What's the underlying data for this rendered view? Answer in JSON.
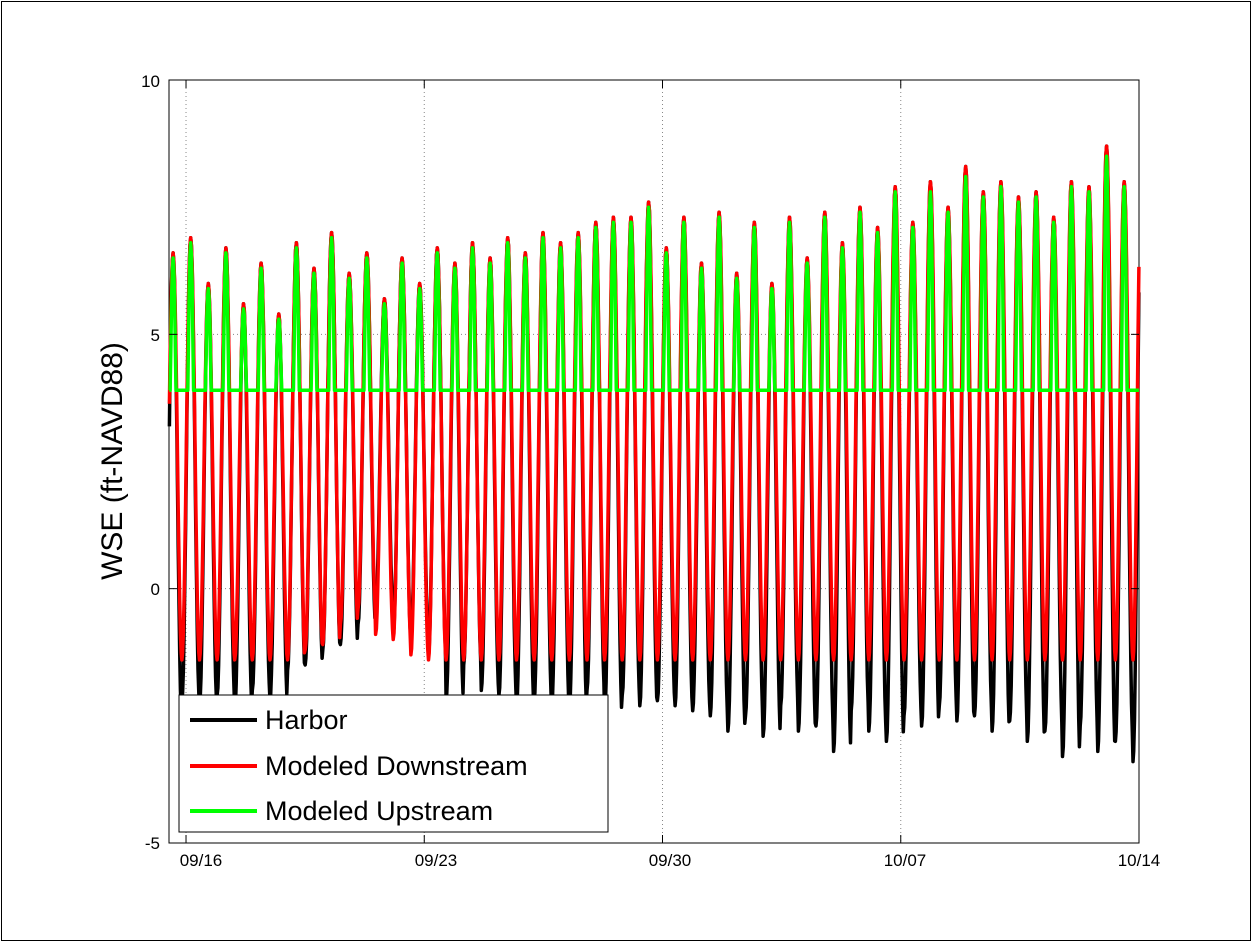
{
  "chart_data": {
    "type": "line",
    "title": "",
    "xlabel": "",
    "ylabel": "WSE (ft-NAVD88)",
    "xlim": [
      "09/15 12:00",
      "10/14 00:00"
    ],
    "ylim": [
      -5,
      10
    ],
    "yticks": [
      -5,
      0,
      5,
      10
    ],
    "ytick_labels": [
      "-5",
      "0",
      "5",
      "10"
    ],
    "xticks": [
      "09/16",
      "09/23",
      "09/30",
      "10/07",
      "10/14"
    ],
    "grid": true,
    "legend_position": "bottom-left",
    "tidal_period_hours": 12.42,
    "series": [
      {
        "name": "Harbor",
        "color": "#000000",
        "high_tide": "same as Modeled Downstream",
        "low_tides": [
          -2.6,
          -2.2,
          -2.3,
          -2.1,
          -2.4,
          -2.0,
          -2.2,
          -1.6,
          -1.5,
          -1.2,
          -1.1,
          -0.7,
          -0.4,
          -0.9,
          -1.0,
          -1.3,
          -2.2,
          -1.5,
          -2.0,
          -2.1,
          -2.3,
          -2.2,
          -2.3,
          -2.4,
          -2.0,
          -2.5,
          -2.1,
          -2.3,
          -2.2,
          -2.3,
          -2.4,
          -2.5,
          -2.8,
          -2.5,
          -2.9,
          -2.3,
          -2.8,
          -2.7,
          -3.2,
          -2.4,
          -2.8,
          -3.0,
          -2.5,
          -2.7,
          -2.3,
          -2.6,
          -2.5,
          -2.8,
          -2.6,
          -3.0,
          -2.8,
          -3.3,
          -2.7,
          -3.2,
          -3.0,
          -3.4,
          -3.2,
          -3.8,
          -3.0,
          -3.5,
          -3.3,
          -3.6,
          -3.0,
          -3.9,
          -3.3,
          -4.1,
          -3.3,
          -4.2,
          -3.4,
          -4.1,
          -3.2,
          -3.8,
          -2.8,
          -3.4,
          -2.6,
          -3.0,
          -2.4,
          -2.8,
          -2.2,
          -2.7,
          -2.0,
          -2.5,
          -1.8,
          -2.7,
          -2.0,
          -2.8,
          -2.2
        ]
      },
      {
        "name": "Modeled Downstream",
        "color": "#ff0000",
        "high_tides": [
          6.6,
          6.9,
          6.0,
          6.7,
          5.6,
          6.4,
          5.4,
          6.8,
          6.3,
          7.0,
          6.2,
          6.6,
          5.7,
          6.5,
          6.0,
          6.7,
          6.4,
          6.8,
          6.5,
          6.9,
          6.6,
          7.0,
          6.8,
          7.0,
          7.2,
          7.3,
          7.3,
          7.6,
          6.7,
          7.3,
          6.4,
          7.4,
          6.2,
          7.2,
          6.0,
          7.3,
          6.5,
          7.4,
          6.8,
          7.5,
          7.1,
          7.9,
          7.2,
          8.0,
          7.5,
          8.3,
          7.8,
          8.0,
          7.7,
          7.8,
          7.3,
          8.0,
          7.9,
          8.7,
          8.0,
          8.9,
          7.5,
          8.0
        ],
        "low_tides": [
          -1.4,
          -1.4,
          -1.4,
          -1.4,
          -1.4,
          -1.4,
          -1.4,
          -1.4,
          -1.2,
          -1.1,
          -0.7,
          -0.4,
          -0.9,
          -1.0,
          -1.3,
          -1.4,
          -1.4,
          -1.4,
          -1.4,
          -1.4,
          -1.4,
          -1.4,
          -1.4,
          -1.4,
          -1.4,
          -1.4,
          -1.4,
          -1.4,
          -1.4,
          -1.4,
          -1.4,
          -1.4,
          -1.4,
          -1.4,
          -1.4,
          -1.4,
          -1.4,
          -1.4,
          -1.4,
          -1.4,
          -1.4,
          -1.4,
          -1.4,
          -1.4,
          -1.4,
          -1.4,
          -1.4,
          -1.4,
          -1.4,
          -1.4,
          -1.4,
          -1.4,
          -1.4,
          -1.4,
          -1.4,
          -1.4,
          -1.4,
          -1.4
        ]
      },
      {
        "name": "Modeled Upstream",
        "color": "#00ff00",
        "floor": 3.9,
        "high_tides": [
          6.5,
          6.8,
          5.9,
          6.6,
          5.5,
          6.3,
          5.3,
          6.7,
          6.2,
          6.9,
          6.1,
          6.5,
          5.6,
          6.4,
          5.9,
          6.6,
          6.3,
          6.7,
          6.4,
          6.8,
          6.5,
          6.9,
          6.7,
          6.9,
          7.1,
          7.2,
          7.2,
          7.5,
          6.6,
          7.2,
          6.3,
          7.3,
          6.1,
          7.1,
          5.9,
          7.2,
          6.4,
          7.3,
          6.7,
          7.4,
          7.0,
          7.8,
          7.1,
          7.8,
          7.4,
          8.1,
          7.7,
          7.9,
          7.6,
          7.7,
          7.2,
          7.9,
          7.8,
          8.5,
          7.9,
          8.7,
          7.4,
          7.9
        ]
      }
    ]
  }
}
